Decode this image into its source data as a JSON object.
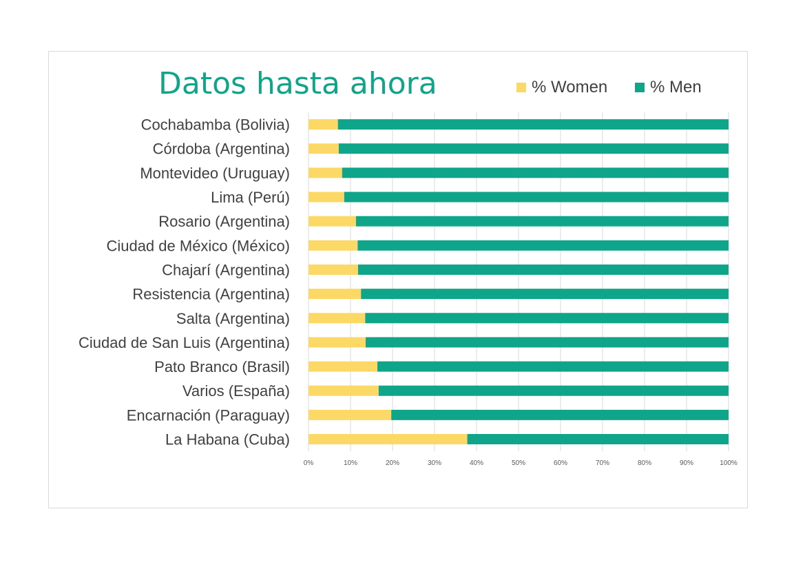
{
  "colors": {
    "women": "#fcd966",
    "men": "#0fa58a",
    "title": "#10a58a",
    "grid": "#d9d9d9",
    "text": "#404040"
  },
  "chart_data": {
    "type": "bar",
    "orientation": "horizontal",
    "stacked": "percent",
    "title": "Datos hasta ahora",
    "legend_position": "top-right",
    "categories": [
      "Cochabamba (Bolivia)",
      "Córdoba (Argentina)",
      "Montevideo (Uruguay)",
      "Lima (Perú)",
      "Rosario (Argentina)",
      "Ciudad de México (México)",
      "Chajarí (Argentina)",
      "Resistencia (Argentina)",
      "Salta (Argentina)",
      "Ciudad de San Luis (Argentina)",
      "Pato Branco (Brasil)",
      "Varios (España)",
      "Encarnación (Paraguay)",
      "La Habana (Cuba)"
    ],
    "series": [
      {
        "name": "% Women",
        "values": [
          7,
          7.2,
          8,
          8.5,
          11.3,
          11.7,
          11.8,
          12.5,
          13.5,
          13.6,
          16.4,
          16.7,
          19.7,
          37.8
        ]
      },
      {
        "name": "% Men",
        "values": [
          93,
          92.8,
          92,
          91.5,
          88.7,
          88.3,
          88.2,
          87.5,
          86.5,
          86.4,
          83.6,
          83.3,
          80.3,
          62.2
        ]
      }
    ],
    "xlim": [
      0,
      100
    ],
    "xticks": [
      "0%",
      "10%",
      "20%",
      "30%",
      "40%",
      "50%",
      "60%",
      "70%",
      "80%",
      "90%",
      "100%"
    ],
    "grid": true
  }
}
